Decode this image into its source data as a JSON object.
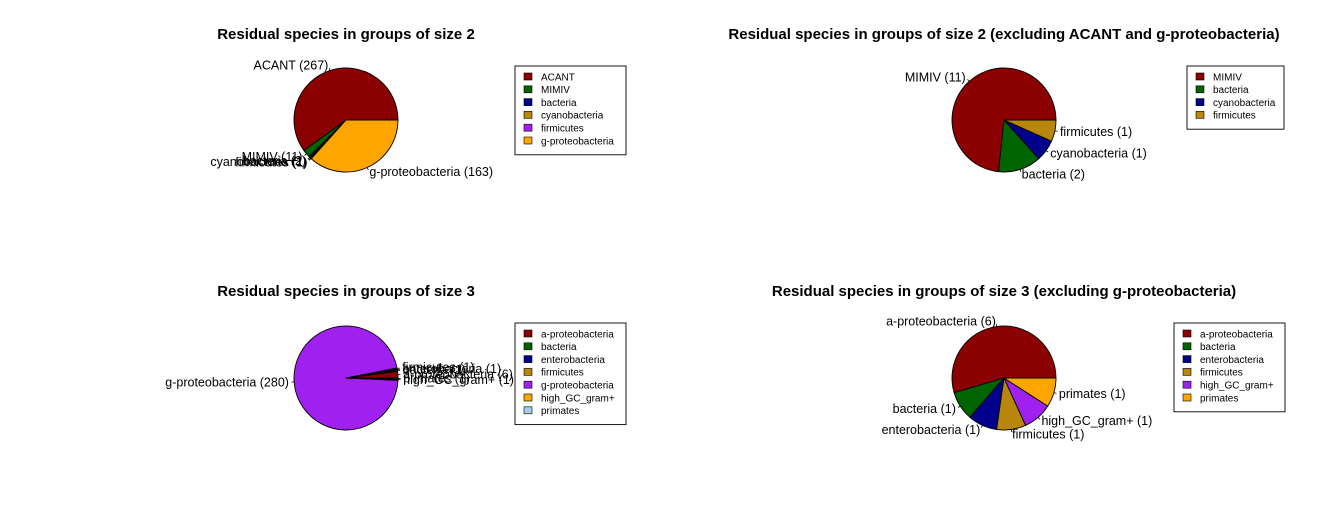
{
  "colors": {
    "ACANT": "#8B0000",
    "MIMIV": "#006400",
    "bacteria": "#00008B",
    "cyanobacteria": "#B8860B",
    "firmicutes": "#A020F0",
    "g-proteobacteria": "#FFA500",
    "a-proteobacteria": "#8B0000",
    "enterobacteria": "#00008B",
    "high_GC_gram+": "#FFA500",
    "primates": "#A6CEE3"
  },
  "chart_data": [
    {
      "type": "pie",
      "title": "Residual species in groups of size 2",
      "slices": [
        {
          "name": "ACANT",
          "value": 267,
          "label": "ACANT (267)",
          "color": "#8B0000"
        },
        {
          "name": "MIMIV",
          "value": 11,
          "label": "MIMIV (11)",
          "color": "#006400"
        },
        {
          "name": "bacteria",
          "value": 2,
          "label": "bacteria (2)",
          "color": "#00008B"
        },
        {
          "name": "cyanobacteria",
          "value": 1,
          "label": "cyanobacteria (1)",
          "color": "#B8860B"
        },
        {
          "name": "firmicutes",
          "value": 1,
          "label": "firmicutes (1)",
          "color": "#A020F0"
        },
        {
          "name": "g-proteobacteria",
          "value": 163,
          "label": "g-proteobacteria (163)",
          "color": "#FFA500"
        }
      ],
      "legend": {
        "placement": "right",
        "entries": [
          {
            "label": "ACANT",
            "color": "#8B0000"
          },
          {
            "label": "MIMIV",
            "color": "#006400"
          },
          {
            "label": "bacteria",
            "color": "#00008B"
          },
          {
            "label": "cyanobacteria",
            "color": "#B8860B"
          },
          {
            "label": "firmicutes",
            "color": "#A020F0"
          },
          {
            "label": "g-proteobacteria",
            "color": "#FFA500"
          }
        ]
      }
    },
    {
      "type": "pie",
      "title": "Residual species in groups of size 2 (excluding ACANT and g-proteobacteria)",
      "slices": [
        {
          "name": "MIMIV",
          "value": 11,
          "label": "MIMIV (11)",
          "color": "#8B0000"
        },
        {
          "name": "bacteria",
          "value": 2,
          "label": "bacteria (2)",
          "color": "#006400"
        },
        {
          "name": "cyanobacteria",
          "value": 1,
          "label": "cyanobacteria (1)",
          "color": "#00008B"
        },
        {
          "name": "firmicutes",
          "value": 1,
          "label": "firmicutes (1)",
          "color": "#B8860B"
        }
      ],
      "legend": {
        "placement": "right",
        "entries": [
          {
            "label": "MIMIV",
            "color": "#8B0000"
          },
          {
            "label": "bacteria",
            "color": "#006400"
          },
          {
            "label": "cyanobacteria",
            "color": "#00008B"
          },
          {
            "label": "firmicutes",
            "color": "#B8860B"
          }
        ]
      }
    },
    {
      "type": "pie",
      "title": "Residual species in groups of size 3",
      "slices": [
        {
          "name": "a-proteobacteria",
          "value": 6,
          "label": "a-proteobacteria (6)",
          "color": "#8B0000"
        },
        {
          "name": "bacteria",
          "value": 1,
          "label": "bacteria (1)",
          "color": "#006400"
        },
        {
          "name": "enterobacteria",
          "value": 1,
          "label": "enterobacteria (1)",
          "color": "#00008B"
        },
        {
          "name": "firmicutes",
          "value": 1,
          "label": "firmicutes (1)",
          "color": "#B8860B"
        },
        {
          "name": "g-proteobacteria",
          "value": 280,
          "label": "g-proteobacteria (280)",
          "color": "#A020F0"
        },
        {
          "name": "high_GC_gram+",
          "value": 1,
          "label": "high_GC_gram+ (1)",
          "color": "#FFA500"
        },
        {
          "name": "primates",
          "value": 1,
          "label": "primates (1)",
          "color": "#A6CEE3"
        }
      ],
      "legend": {
        "placement": "right",
        "entries": [
          {
            "label": "a-proteobacteria",
            "color": "#8B0000"
          },
          {
            "label": "bacteria",
            "color": "#006400"
          },
          {
            "label": "enterobacteria",
            "color": "#00008B"
          },
          {
            "label": "firmicutes",
            "color": "#B8860B"
          },
          {
            "label": "g-proteobacteria",
            "color": "#A020F0"
          },
          {
            "label": "high_GC_gram+",
            "color": "#FFA500"
          },
          {
            "label": "primates",
            "color": "#A6CEE3"
          }
        ]
      }
    },
    {
      "type": "pie",
      "title": "Residual species in groups of size 3 (excluding g-proteobacteria)",
      "slices": [
        {
          "name": "a-proteobacteria",
          "value": 6,
          "label": "a-proteobacteria (6)",
          "color": "#8B0000"
        },
        {
          "name": "bacteria",
          "value": 1,
          "label": "bacteria (1)",
          "color": "#006400"
        },
        {
          "name": "enterobacteria",
          "value": 1,
          "label": "enterobacteria (1)",
          "color": "#00008B"
        },
        {
          "name": "firmicutes",
          "value": 1,
          "label": "firmicutes (1)",
          "color": "#B8860B"
        },
        {
          "name": "high_GC_gram+",
          "value": 1,
          "label": "high_GC_gram+ (1)",
          "color": "#A020F0"
        },
        {
          "name": "primates",
          "value": 1,
          "label": "primates (1)",
          "color": "#FFA500"
        }
      ],
      "legend": {
        "placement": "right",
        "entries": [
          {
            "label": "a-proteobacteria",
            "color": "#8B0000"
          },
          {
            "label": "bacteria",
            "color": "#006400"
          },
          {
            "label": "enterobacteria",
            "color": "#00008B"
          },
          {
            "label": "firmicutes",
            "color": "#B8860B"
          },
          {
            "label": "high_GC_gram+",
            "color": "#A020F0"
          },
          {
            "label": "primates",
            "color": "#FFA500"
          }
        ]
      }
    }
  ]
}
